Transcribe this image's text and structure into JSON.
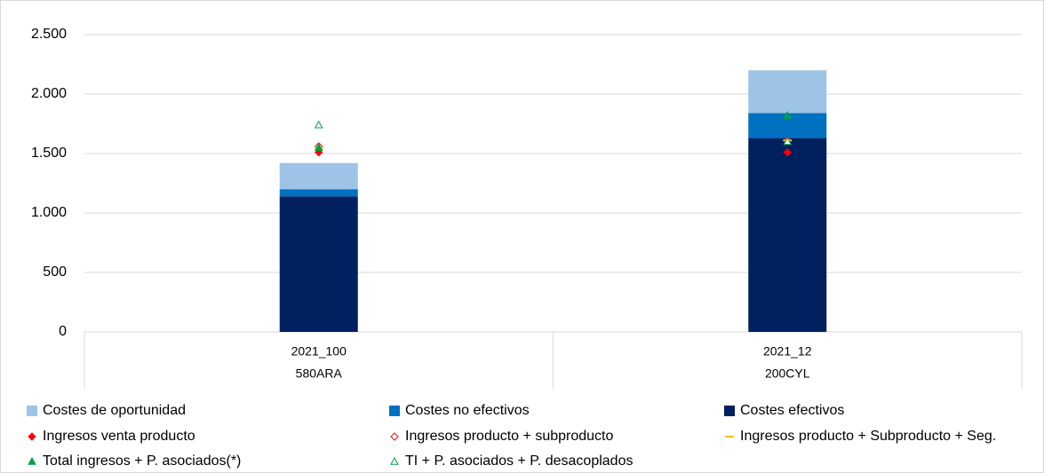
{
  "chart_data": {
    "type": "bar",
    "stacked": true,
    "categories": [
      "2021_100",
      "2021_12"
    ],
    "category_groups": [
      "580ARA",
      "200CYL"
    ],
    "ylim": [
      0,
      2500
    ],
    "yticks": [
      0,
      500,
      {
        "value": 1000,
        "label": "1.000"
      },
      {
        "value": 1500,
        "label": "1.500"
      },
      {
        "value": 2000,
        "label": "2.000"
      },
      {
        "value": 2500,
        "label": "2.500"
      }
    ],
    "grid": true,
    "legend": "bottom",
    "series": [
      {
        "name": "Costes de oportunidad",
        "kind": "bar",
        "color": "#9dc3e6",
        "values": [
          220,
          360
        ]
      },
      {
        "name": "Costes no efectivos",
        "kind": "bar",
        "color": "#0070c0",
        "values": [
          60,
          210
        ]
      },
      {
        "name": "Costes efectivos",
        "kind": "bar",
        "color": "#002060",
        "values": [
          1140,
          1630
        ]
      },
      {
        "name": "Ingresos venta producto",
        "kind": "marker",
        "marker": "diamond",
        "filled": true,
        "color": "#ff0000",
        "values": [
          1510,
          1510
        ]
      },
      {
        "name": "Ingresos producto + subproducto",
        "kind": "marker",
        "marker": "diamond",
        "filled": false,
        "color": "#ff0000",
        "values": [
          1560,
          1610
        ]
      },
      {
        "name": "Ingresos producto + Subproducto + Seg.",
        "kind": "marker",
        "marker": "dash",
        "filled": true,
        "color": "#ffc000",
        "values": [
          1550,
          1610
        ]
      },
      {
        "name": "Total ingresos + P. asociados(*)",
        "kind": "marker",
        "marker": "triangle",
        "filled": true,
        "color": "#00a04a",
        "values": [
          1550,
          1820
        ]
      },
      {
        "name": "TI + P. asociados + P. desacoplados",
        "kind": "marker",
        "marker": "triangle",
        "filled": false,
        "color": "#00a04a",
        "values": [
          1740,
          1600
        ]
      }
    ]
  }
}
